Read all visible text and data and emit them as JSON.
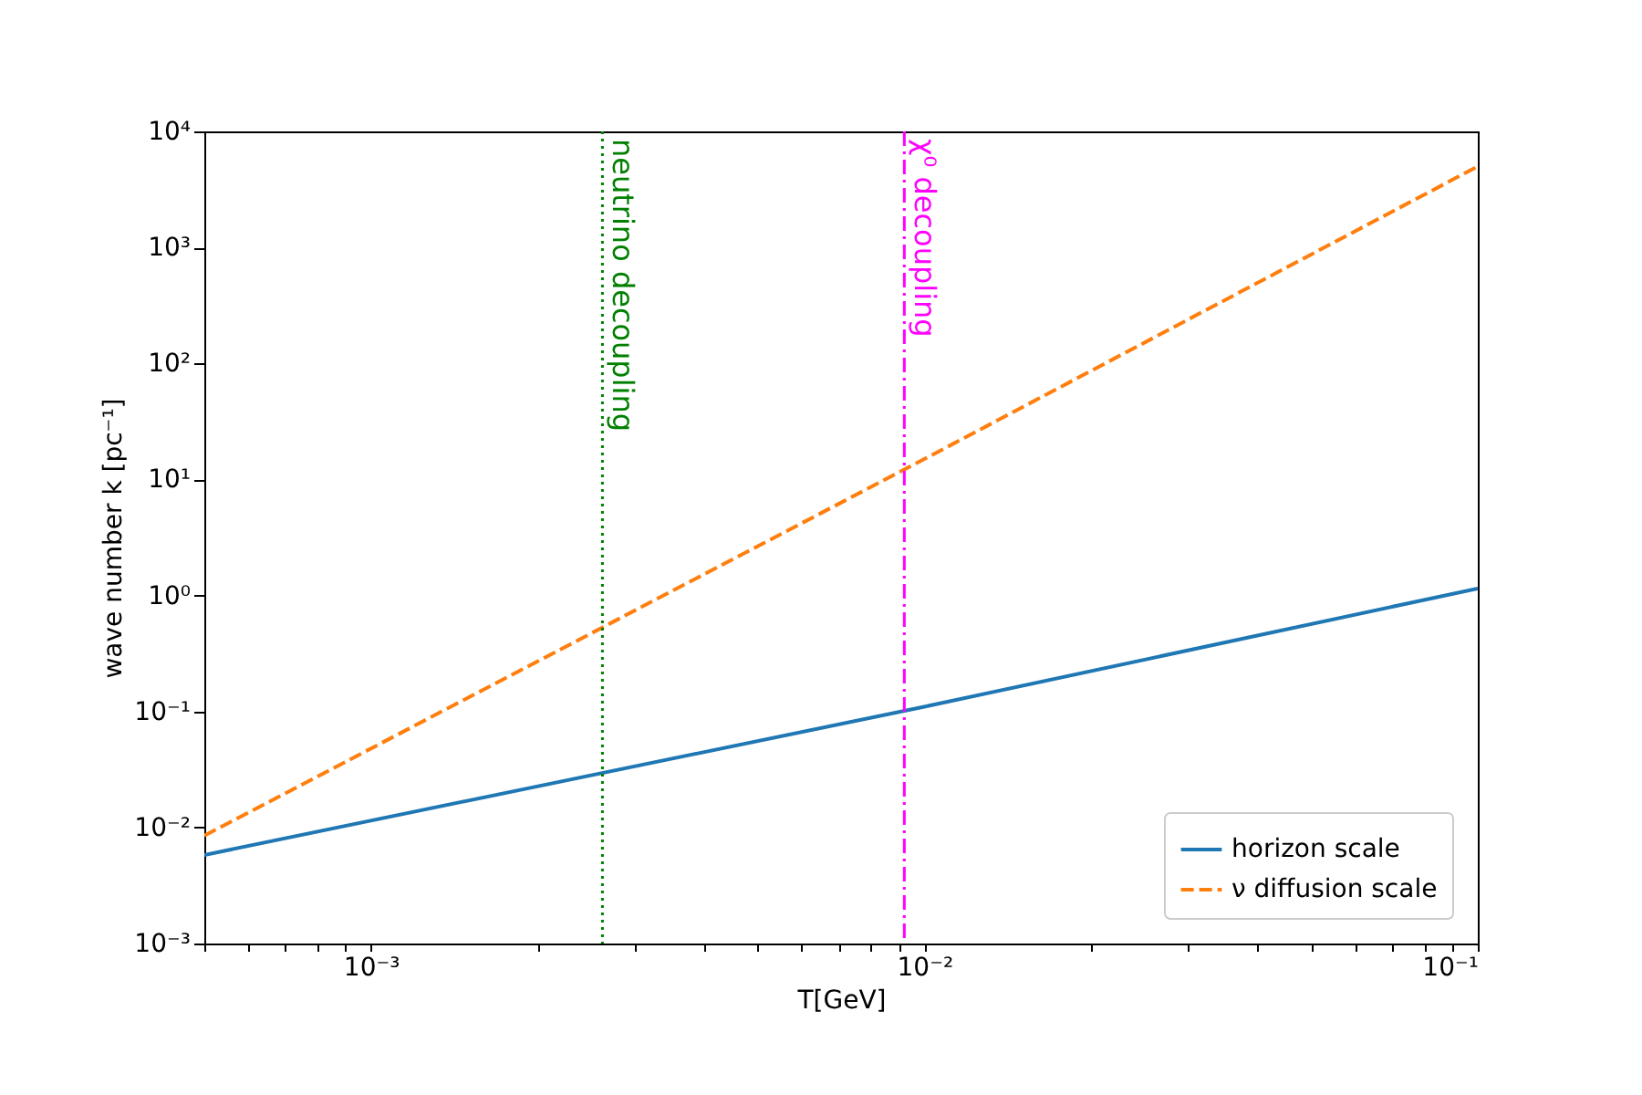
{
  "chart_data": {
    "type": "line",
    "xlabel": "T[GeV]",
    "ylabel": "wave number k [pc⁻¹]",
    "log": "xy",
    "xlim": [
      0.0005,
      0.1
    ],
    "ylim": [
      0.001,
      10000
    ],
    "xticks": [
      {
        "value": 0.0005,
        "label": null
      },
      {
        "value": 0.0006,
        "label": null
      },
      {
        "value": 0.0007,
        "label": null
      },
      {
        "value": 0.0008,
        "label": null
      },
      {
        "value": 0.0009,
        "label": null
      },
      {
        "value": 0.001,
        "label": "10⁻³"
      },
      {
        "value": 0.002,
        "label": null
      },
      {
        "value": 0.003,
        "label": null
      },
      {
        "value": 0.004,
        "label": null
      },
      {
        "value": 0.005,
        "label": null
      },
      {
        "value": 0.006,
        "label": null
      },
      {
        "value": 0.007,
        "label": null
      },
      {
        "value": 0.008,
        "label": null
      },
      {
        "value": 0.009,
        "label": null
      },
      {
        "value": 0.01,
        "label": "10⁻²"
      },
      {
        "value": 0.02,
        "label": null
      },
      {
        "value": 0.03,
        "label": null
      },
      {
        "value": 0.04,
        "label": null
      },
      {
        "value": 0.05,
        "label": null
      },
      {
        "value": 0.06,
        "label": null
      },
      {
        "value": 0.07,
        "label": null
      },
      {
        "value": 0.08,
        "label": null
      },
      {
        "value": 0.09,
        "label": null
      },
      {
        "value": 0.1,
        "label": "10⁻¹"
      }
    ],
    "yticks": [
      {
        "value": 0.001,
        "label": "10⁻³"
      },
      {
        "value": 0.01,
        "label": "10⁻²"
      },
      {
        "value": 0.1,
        "label": "10⁻¹"
      },
      {
        "value": 1,
        "label": "10⁰"
      },
      {
        "value": 10,
        "label": "10¹"
      },
      {
        "value": 100,
        "label": "10²"
      },
      {
        "value": 1000,
        "label": "10³"
      },
      {
        "value": 10000,
        "label": "10⁴"
      }
    ],
    "x": [
      0.0005,
      0.01,
      0.1
    ],
    "series": [
      {
        "name": "horizon scale",
        "color": "#1f77b4",
        "line_style": "solid",
        "values": [
          0.0058,
          0.11,
          1.15
        ]
      },
      {
        "name": "ν diffusion scale",
        "color": "#ff7f0e",
        "line_style": "dashed",
        "values": [
          0.0085,
          15,
          5000
        ]
      }
    ],
    "ref_lines": [
      {
        "axis": "x",
        "value": 0.00262,
        "label": "neutrino decoupling",
        "color": "#008000",
        "line_style": "dotted"
      },
      {
        "axis": "x",
        "value": 0.0092,
        "label": "χ⁰ decoupling",
        "color": "#ff00ff",
        "line_style": "dashdot"
      }
    ],
    "legend": "bottom right",
    "grid": false
  }
}
